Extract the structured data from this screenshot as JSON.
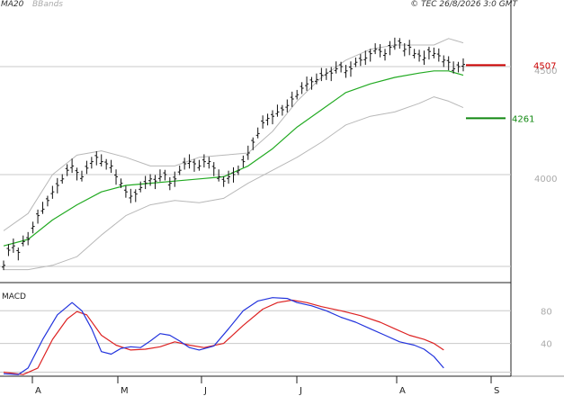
{
  "header": {
    "ma_label": "MA20",
    "bbands_label": "BBands",
    "copyright": "© TEC 26/8/2026 3:0 GMT"
  },
  "colors": {
    "ma": "#22aa22",
    "bbands": "#b8b8b8",
    "bars": "#111111",
    "macd": "#2233dd",
    "signal": "#dd2222",
    "resistance": "#cc0000",
    "support": "#118811",
    "grid": "#c8c8c8"
  },
  "chart_data": [
    {
      "type": "line",
      "title": "",
      "x_ticks": [
        "A",
        "M",
        "J",
        "J",
        "A",
        "S"
      ],
      "y_ticks": [
        "4500",
        "4000"
      ],
      "ylim": [
        3500,
        4750
      ],
      "levels": [
        {
          "name": "resistance",
          "label": "4507",
          "value": 4507
        },
        {
          "name": "support",
          "label": "4261",
          "value": 4261
        }
      ],
      "series": [
        {
          "key": "price_bars",
          "points": [
            [
              0,
              3580
            ],
            [
              2,
              3650
            ],
            [
              4,
              3670
            ],
            [
              6,
              3640
            ],
            [
              8,
              3690
            ],
            [
              10,
              3700
            ],
            [
              12,
              3760
            ],
            [
              14,
              3810
            ],
            [
              16,
              3840
            ],
            [
              18,
              3880
            ],
            [
              20,
              3920
            ],
            [
              22,
              3950
            ],
            [
              24,
              3980
            ],
            [
              26,
              4020
            ],
            [
              28,
              4040
            ],
            [
              30,
              4010
            ],
            [
              32,
              3990
            ],
            [
              34,
              4030
            ],
            [
              36,
              4060
            ],
            [
              38,
              4080
            ],
            [
              40,
              4060
            ],
            [
              42,
              4050
            ],
            [
              44,
              4040
            ],
            [
              46,
              3990
            ],
            [
              48,
              3960
            ],
            [
              50,
              3920
            ],
            [
              52,
              3900
            ],
            [
              54,
              3910
            ],
            [
              56,
              3940
            ],
            [
              58,
              3960
            ],
            [
              60,
              3980
            ],
            [
              62,
              3970
            ],
            [
              64,
              3990
            ],
            [
              66,
              4000
            ],
            [
              68,
              3960
            ],
            [
              70,
              3980
            ],
            [
              72,
              4020
            ],
            [
              74,
              4050
            ],
            [
              76,
              4060
            ],
            [
              78,
              4050
            ],
            [
              80,
              4040
            ],
            [
              82,
              4060
            ],
            [
              84,
              4060
            ],
            [
              86,
              4030
            ],
            [
              88,
              3990
            ],
            [
              90,
              3970
            ],
            [
              92,
              3990
            ],
            [
              94,
              4000
            ],
            [
              96,
              4020
            ],
            [
              98,
              4060
            ],
            [
              100,
              4100
            ],
            [
              102,
              4150
            ],
            [
              104,
              4190
            ],
            [
              106,
              4240
            ],
            [
              108,
              4260
            ],
            [
              110,
              4270
            ],
            [
              112,
              4290
            ],
            [
              114,
              4300
            ],
            [
              116,
              4320
            ],
            [
              118,
              4350
            ],
            [
              120,
              4370
            ],
            [
              122,
              4400
            ],
            [
              124,
              4420
            ],
            [
              126,
              4430
            ],
            [
              128,
              4440
            ],
            [
              130,
              4460
            ],
            [
              132,
              4470
            ],
            [
              134,
              4470
            ],
            [
              136,
              4490
            ],
            [
              138,
              4500
            ],
            [
              140,
              4480
            ],
            [
              142,
              4490
            ],
            [
              144,
              4520
            ],
            [
              146,
              4530
            ],
            [
              148,
              4540
            ],
            [
              150,
              4560
            ],
            [
              152,
              4580
            ],
            [
              154,
              4570
            ],
            [
              156,
              4560
            ],
            [
              158,
              4590
            ],
            [
              160,
              4600
            ],
            [
              162,
              4610
            ],
            [
              164,
              4580
            ],
            [
              166,
              4590
            ],
            [
              168,
              4560
            ],
            [
              170,
              4550
            ],
            [
              172,
              4540
            ],
            [
              174,
              4570
            ],
            [
              176,
              4560
            ],
            [
              178,
              4550
            ],
            [
              180,
              4530
            ],
            [
              182,
              4520
            ],
            [
              184,
              4490
            ],
            [
              186,
              4500
            ],
            [
              188,
              4510
            ]
          ]
        },
        {
          "key": "ma20",
          "points": [
            [
              0,
              3670
            ],
            [
              10,
              3700
            ],
            [
              20,
              3790
            ],
            [
              30,
              3860
            ],
            [
              40,
              3920
            ],
            [
              50,
              3950
            ],
            [
              60,
              3960
            ],
            [
              70,
              3970
            ],
            [
              80,
              3980
            ],
            [
              90,
              3990
            ],
            [
              100,
              4040
            ],
            [
              110,
              4120
            ],
            [
              120,
              4220
            ],
            [
              130,
              4300
            ],
            [
              140,
              4380
            ],
            [
              150,
              4420
            ],
            [
              160,
              4450
            ],
            [
              170,
              4470
            ],
            [
              176,
              4480
            ],
            [
              182,
              4480
            ],
            [
              188,
              4460
            ]
          ]
        },
        {
          "key": "bband_upper",
          "points": [
            [
              0,
              3740
            ],
            [
              10,
              3820
            ],
            [
              20,
              4000
            ],
            [
              30,
              4090
            ],
            [
              40,
              4110
            ],
            [
              50,
              4080
            ],
            [
              60,
              4040
            ],
            [
              70,
              4040
            ],
            [
              80,
              4080
            ],
            [
              90,
              4090
            ],
            [
              100,
              4100
            ],
            [
              110,
              4200
            ],
            [
              120,
              4340
            ],
            [
              130,
              4450
            ],
            [
              140,
              4530
            ],
            [
              150,
              4580
            ],
            [
              160,
              4600
            ],
            [
              170,
              4600
            ],
            [
              176,
              4600
            ],
            [
              182,
              4630
            ],
            [
              188,
              4610
            ]
          ]
        },
        {
          "key": "bband_lower",
          "points": [
            [
              0,
              3560
            ],
            [
              10,
              3560
            ],
            [
              20,
              3580
            ],
            [
              30,
              3620
            ],
            [
              40,
              3720
            ],
            [
              50,
              3810
            ],
            [
              60,
              3860
            ],
            [
              70,
              3880
            ],
            [
              80,
              3870
            ],
            [
              90,
              3890
            ],
            [
              100,
              3960
            ],
            [
              110,
              4020
            ],
            [
              120,
              4080
            ],
            [
              130,
              4150
            ],
            [
              140,
              4230
            ],
            [
              150,
              4270
            ],
            [
              160,
              4290
            ],
            [
              170,
              4330
            ],
            [
              176,
              4360
            ],
            [
              182,
              4340
            ],
            [
              188,
              4310
            ]
          ]
        }
      ]
    },
    {
      "type": "line",
      "title": "MACD",
      "y_ticks": [
        "80",
        "40"
      ],
      "ylim": [
        0,
        110
      ],
      "series": [
        {
          "key": "macd",
          "points": [
            [
              0,
              3
            ],
            [
              6,
              2
            ],
            [
              10,
              10
            ],
            [
              16,
              45
            ],
            [
              22,
              75
            ],
            [
              28,
              90
            ],
            [
              32,
              80
            ],
            [
              36,
              58
            ],
            [
              40,
              30
            ],
            [
              44,
              27
            ],
            [
              48,
              34
            ],
            [
              52,
              36
            ],
            [
              56,
              35
            ],
            [
              60,
              43
            ],
            [
              64,
              52
            ],
            [
              68,
              50
            ],
            [
              72,
              43
            ],
            [
              76,
              35
            ],
            [
              80,
              32
            ],
            [
              86,
              37
            ],
            [
              92,
              58
            ],
            [
              98,
              80
            ],
            [
              104,
              92
            ],
            [
              110,
              96
            ],
            [
              116,
              95
            ],
            [
              120,
              90
            ],
            [
              126,
              86
            ],
            [
              132,
              80
            ],
            [
              138,
              72
            ],
            [
              144,
              66
            ],
            [
              150,
              58
            ],
            [
              156,
              50
            ],
            [
              162,
              42
            ],
            [
              168,
              38
            ],
            [
              172,
              33
            ],
            [
              176,
              24
            ],
            [
              180,
              10
            ]
          ]
        },
        {
          "key": "signal",
          "points": [
            [
              0,
              5
            ],
            [
              8,
              2
            ],
            [
              14,
              10
            ],
            [
              20,
              45
            ],
            [
              26,
              70
            ],
            [
              30,
              79
            ],
            [
              34,
              75
            ],
            [
              40,
              50
            ],
            [
              46,
              38
            ],
            [
              52,
              32
            ],
            [
              58,
              33
            ],
            [
              64,
              36
            ],
            [
              70,
              42
            ],
            [
              76,
              38
            ],
            [
              82,
              35
            ],
            [
              90,
              40
            ],
            [
              98,
              62
            ],
            [
              106,
              82
            ],
            [
              112,
              90
            ],
            [
              118,
              93
            ],
            [
              124,
              90
            ],
            [
              130,
              85
            ],
            [
              138,
              80
            ],
            [
              146,
              74
            ],
            [
              154,
              66
            ],
            [
              160,
              58
            ],
            [
              166,
              50
            ],
            [
              172,
              45
            ],
            [
              176,
              40
            ],
            [
              180,
              32
            ]
          ]
        }
      ]
    }
  ]
}
